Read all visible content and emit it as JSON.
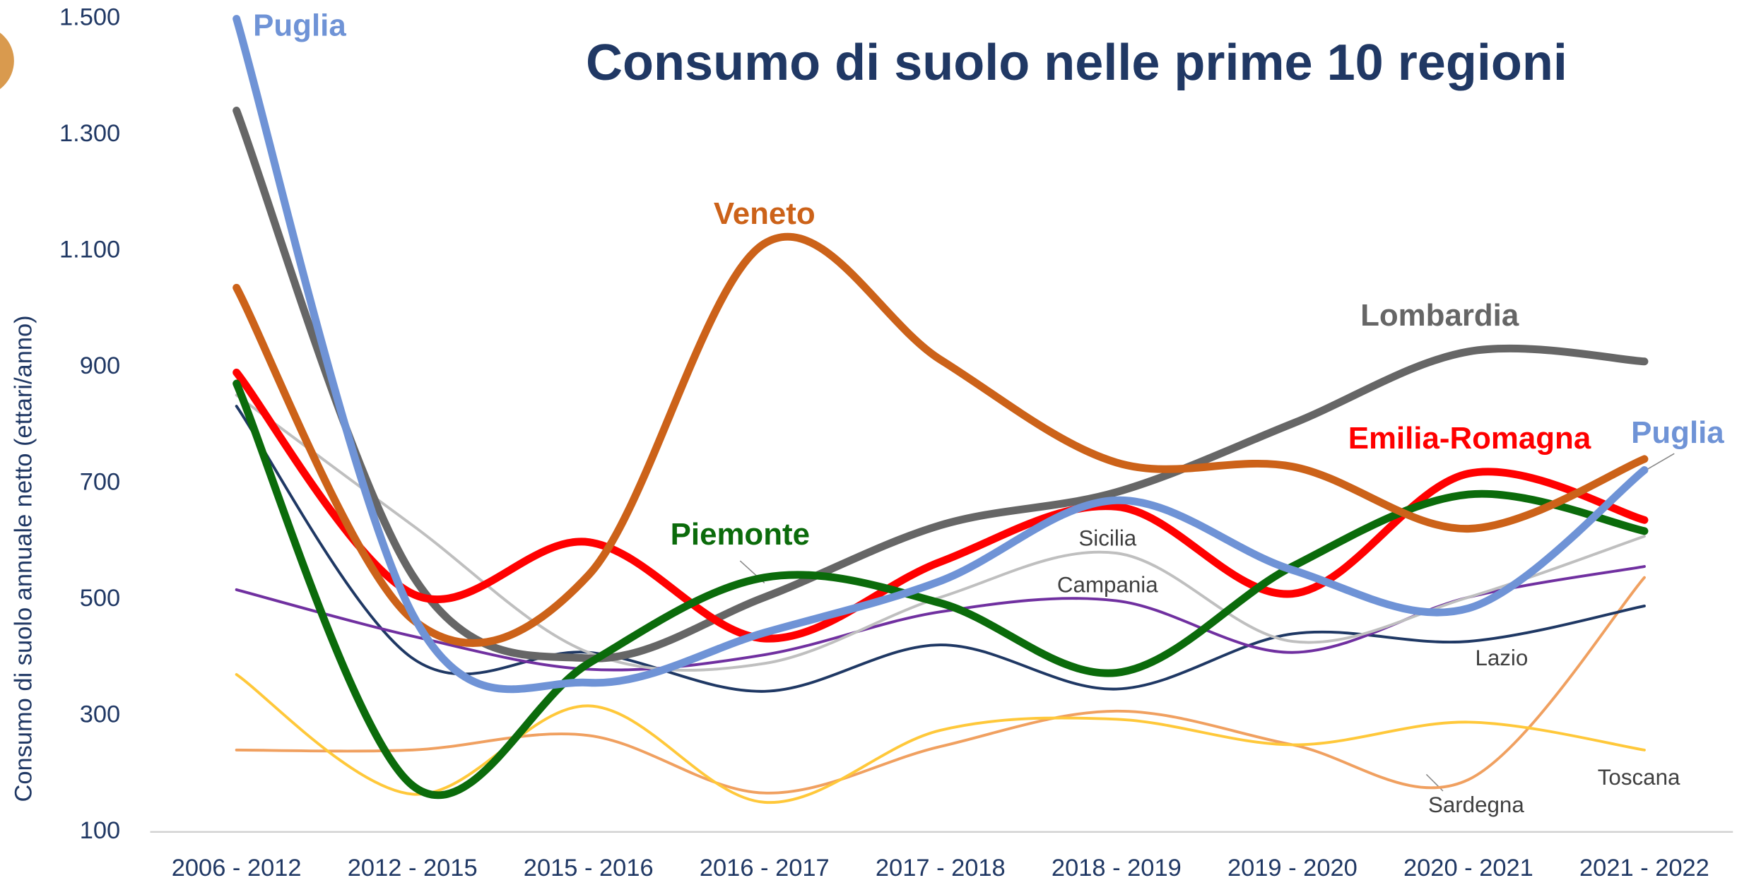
{
  "chart_data": {
    "type": "line",
    "title": "Consumo di suolo nelle prime 10 regioni",
    "y_label": "Consumo di suolo annuale netto (ettari/anno)",
    "categories": [
      "2006 - 2012",
      "2012 - 2015",
      "2015 - 2016",
      "2016 - 2017",
      "2017 - 2018",
      "2018 - 2019",
      "2019 - 2020",
      "2020 - 2021",
      "2021 - 2022"
    ],
    "ylim": [
      100,
      1500
    ],
    "yticks": [
      100,
      300,
      500,
      700,
      900,
      {
        "value": 1100,
        "label": "1.100"
      },
      {
        "value": 1300,
        "label": "1.300"
      },
      {
        "value": 1500,
        "label": "1.500"
      }
    ],
    "grid": false,
    "series": [
      {
        "name": "Sardegna",
        "color": "#f0a060",
        "width": 2.5,
        "values": [
          241,
          241,
          266,
          167,
          247,
          308,
          250,
          190,
          538
        ]
      },
      {
        "name": "Toscana",
        "color": "#ffc83a",
        "width": 2.5,
        "values": [
          371,
          165,
          317,
          151,
          275,
          294,
          250,
          289,
          241
        ]
      },
      {
        "name": "Lazio",
        "color": "#1f3864",
        "width": 2.5,
        "values": [
          833,
          399,
          409,
          342,
          422,
          346,
          441,
          428,
          489
        ]
      },
      {
        "name": "Campania",
        "color": "#7030a0",
        "width": 2.5,
        "values": [
          517,
          437,
          380,
          405,
          479,
          498,
          409,
          504,
          557
        ]
      },
      {
        "name": "Sicilia",
        "color": "#bfbfbf",
        "width": 2.5,
        "values": [
          852,
          628,
          409,
          390,
          504,
          580,
          428,
          504,
          609
        ]
      },
      {
        "name": "Lombardia",
        "color": "#666666",
        "width": 7,
        "values": [
          1342,
          542,
          399,
          504,
          628,
          685,
          803,
          927,
          910
        ]
      },
      {
        "name": "Emilia-Romagna",
        "color": "#ff0000",
        "width": 7,
        "values": [
          891,
          510,
          599,
          433,
          565,
          660,
          510,
          717,
          637
        ]
      },
      {
        "name": "Piemonte",
        "color": "#0b6b0b",
        "width": 7,
        "values": [
          872,
          180,
          390,
          538,
          494,
          374,
          557,
          681,
          618
        ]
      },
      {
        "name": "Veneto",
        "color": "#cc6219",
        "width": 7,
        "values": [
          1037,
          466,
          542,
          1113,
          913,
          736,
          729,
          622,
          742
        ]
      },
      {
        "name": "Puglia",
        "color": "#6f93d6",
        "width": 7,
        "values": [
          1500,
          475,
          357,
          443,
          532,
          671,
          551,
          485,
          723
        ]
      }
    ]
  }
}
